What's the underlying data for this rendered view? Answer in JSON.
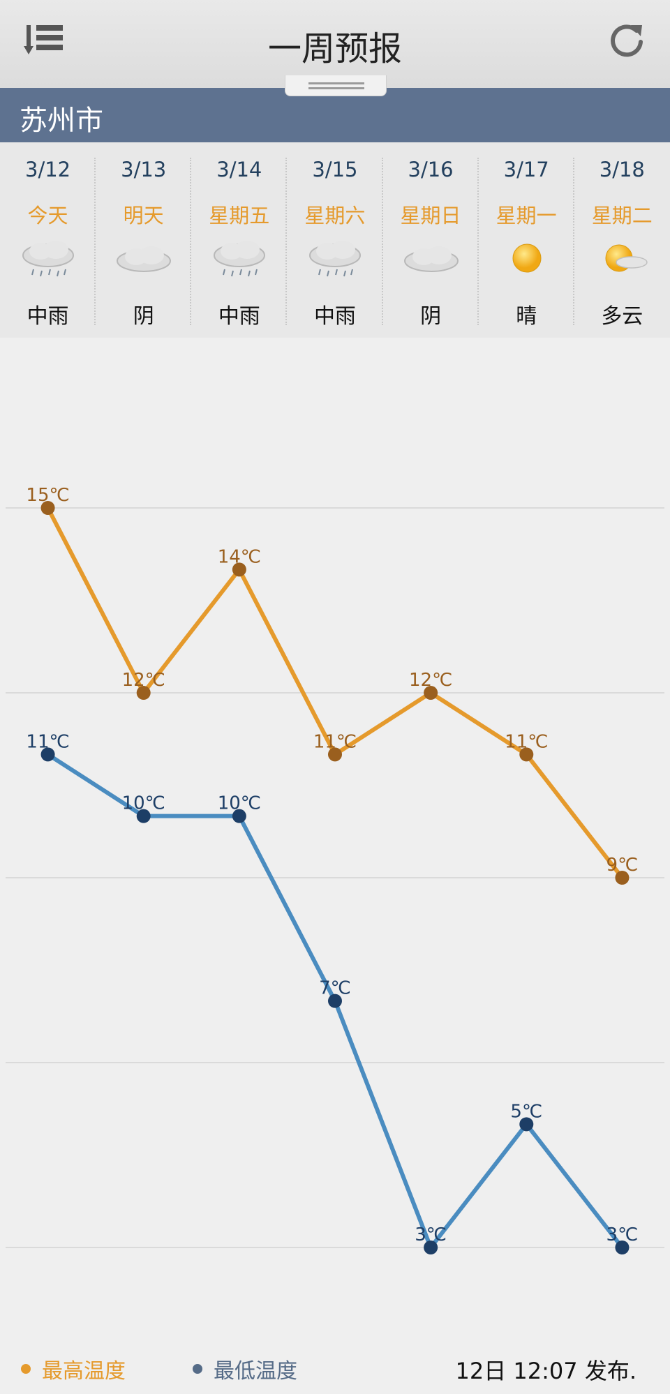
{
  "header": {
    "title": "一周预报",
    "menu_icon": "sort-list-icon",
    "refresh_icon": "refresh-icon"
  },
  "city": "苏州市",
  "days": [
    {
      "date": "3/12",
      "dow": "今天",
      "icon": "rain-cloud-icon",
      "cond": "中雨"
    },
    {
      "date": "3/13",
      "dow": "明天",
      "icon": "cloud-icon",
      "cond": "阴"
    },
    {
      "date": "3/14",
      "dow": "星期五",
      "icon": "rain-cloud-icon",
      "cond": "中雨"
    },
    {
      "date": "3/15",
      "dow": "星期六",
      "icon": "rain-cloud-icon",
      "cond": "中雨"
    },
    {
      "date": "3/16",
      "dow": "星期日",
      "icon": "cloud-icon",
      "cond": "阴"
    },
    {
      "date": "3/17",
      "dow": "星期一",
      "icon": "sun-icon",
      "cond": "晴"
    },
    {
      "date": "3/18",
      "dow": "星期二",
      "icon": "sun-cloud-icon",
      "cond": "多云"
    }
  ],
  "chart_data": {
    "type": "line",
    "x": [
      "3/12",
      "3/13",
      "3/14",
      "3/15",
      "3/16",
      "3/17",
      "3/18"
    ],
    "series": [
      {
        "name": "最高温度",
        "values": [
          15,
          12,
          14,
          11,
          12,
          11,
          9
        ],
        "color": "#e59a2c",
        "dot_color": "#9a5f1e"
      },
      {
        "name": "最低温度",
        "values": [
          11,
          10,
          10,
          7,
          3,
          5,
          3
        ],
        "color": "#4a8cc0",
        "dot_color": "#1d3e66"
      }
    ],
    "unit": "℃",
    "grid": true
  },
  "legend": {
    "high_label": "最高温度",
    "low_label": "最低温度"
  },
  "published": "12日 12:07 发布."
}
